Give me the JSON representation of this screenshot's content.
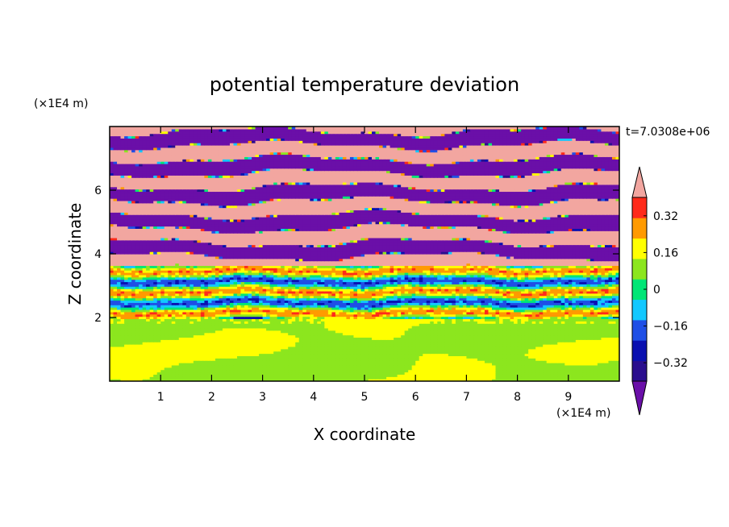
{
  "chart_data": {
    "type": "heatmap",
    "title": "potential temperature deviation",
    "xlabel": "X coordinate",
    "ylabel": "Z coordinate",
    "x_unit": "(×1E4 m)",
    "y_unit": "(×1E4 m)",
    "time_label": "t=7.0308e+06",
    "xlim": [
      0,
      10
    ],
    "ylim": [
      0,
      8
    ],
    "x_ticks": [
      1,
      2,
      3,
      4,
      5,
      6,
      7,
      8,
      9
    ],
    "y_ticks": [
      2,
      4,
      6
    ],
    "colorbar": {
      "levels": [
        -0.4,
        -0.32,
        -0.24,
        -0.16,
        -0.08,
        0,
        0.08,
        0.16,
        0.24,
        0.32,
        0.4
      ],
      "colors": [
        "#6a0fa8",
        "#2a0e8e",
        "#0a10b0",
        "#1f4fe6",
        "#12c8ff",
        "#00e676",
        "#8ce61e",
        "#ffff00",
        "#ff9a00",
        "#ff2a1a",
        "#f2a6a0"
      ],
      "tick_labels": [
        "0.32",
        "0.16",
        "0",
        "-0.16",
        "-0.32"
      ],
      "tick_values": [
        0.32,
        0.16,
        0,
        -0.16,
        -0.32
      ],
      "extend": "both"
    },
    "regions": [
      {
        "z_range": [
          0,
          1.95
        ],
        "description_pattern": "mixed",
        "dominant_values": [
          0,
          0.08
        ]
      },
      {
        "z_range": [
          1.95,
          3.6
        ],
        "description_pattern": "layered",
        "dominant_values": [
          -0.08,
          0,
          0.08,
          -0.24
        ]
      },
      {
        "z_range": [
          3.6,
          8.0
        ],
        "description_pattern": "bands",
        "dominant_values": [
          0.4,
          -0.4
        ]
      }
    ]
  }
}
